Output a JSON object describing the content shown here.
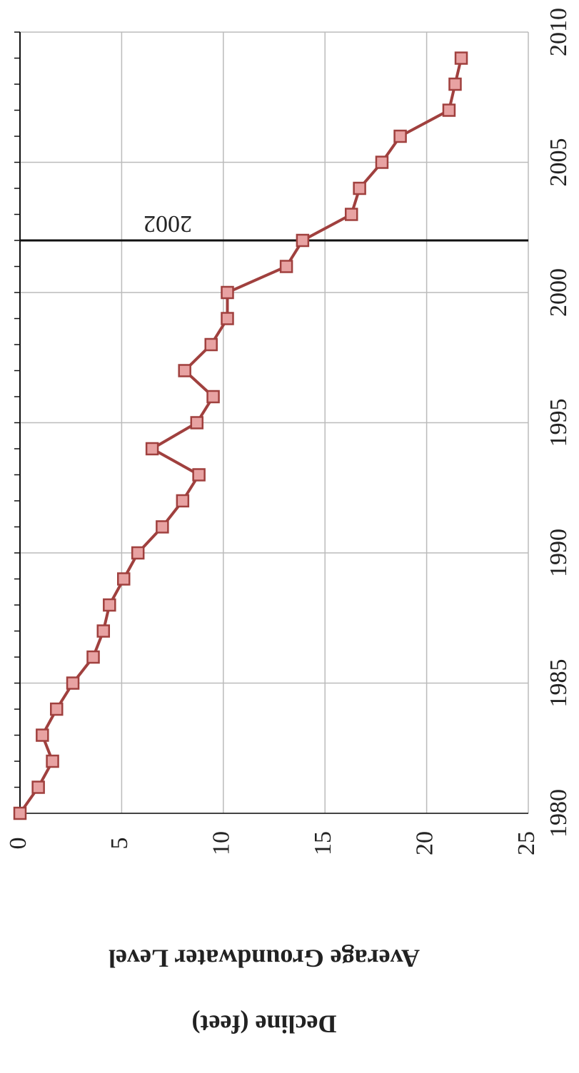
{
  "chart_data": {
    "type": "line",
    "xlabel": null,
    "ylabel": [
      "Average Groundwater Level",
      "Decline (feet)"
    ],
    "x": [
      1980,
      1981,
      1982,
      1983,
      1984,
      1985,
      1986,
      1987,
      1988,
      1989,
      1990,
      1991,
      1992,
      1993,
      1994,
      1995,
      1996,
      1997,
      1998,
      1999,
      2000,
      2001,
      2002,
      2003,
      2004,
      2005,
      2006,
      2007,
      2008,
      2009
    ],
    "series": [
      {
        "name": null,
        "color": "#a0403e",
        "values": [
          0,
          0.9,
          1.6,
          1.1,
          1.8,
          2.6,
          3.6,
          4.1,
          4.4,
          5.1,
          5.8,
          7.0,
          8.0,
          8.8,
          6.5,
          8.7,
          9.5,
          8.1,
          9.4,
          10.2,
          10.2,
          13.1,
          13.9,
          16.3,
          16.7,
          17.8,
          18.7,
          21.1,
          21.4,
          21.7
        ]
      }
    ],
    "xlim": [
      1980,
      2010
    ],
    "xticks": [
      1980,
      1985,
      1990,
      1995,
      2000,
      2005,
      2010
    ],
    "ylim": [
      0,
      25
    ],
    "yticks": [
      0,
      5,
      10,
      15,
      20,
      25
    ],
    "reference_line": 2002,
    "grid": true
  }
}
